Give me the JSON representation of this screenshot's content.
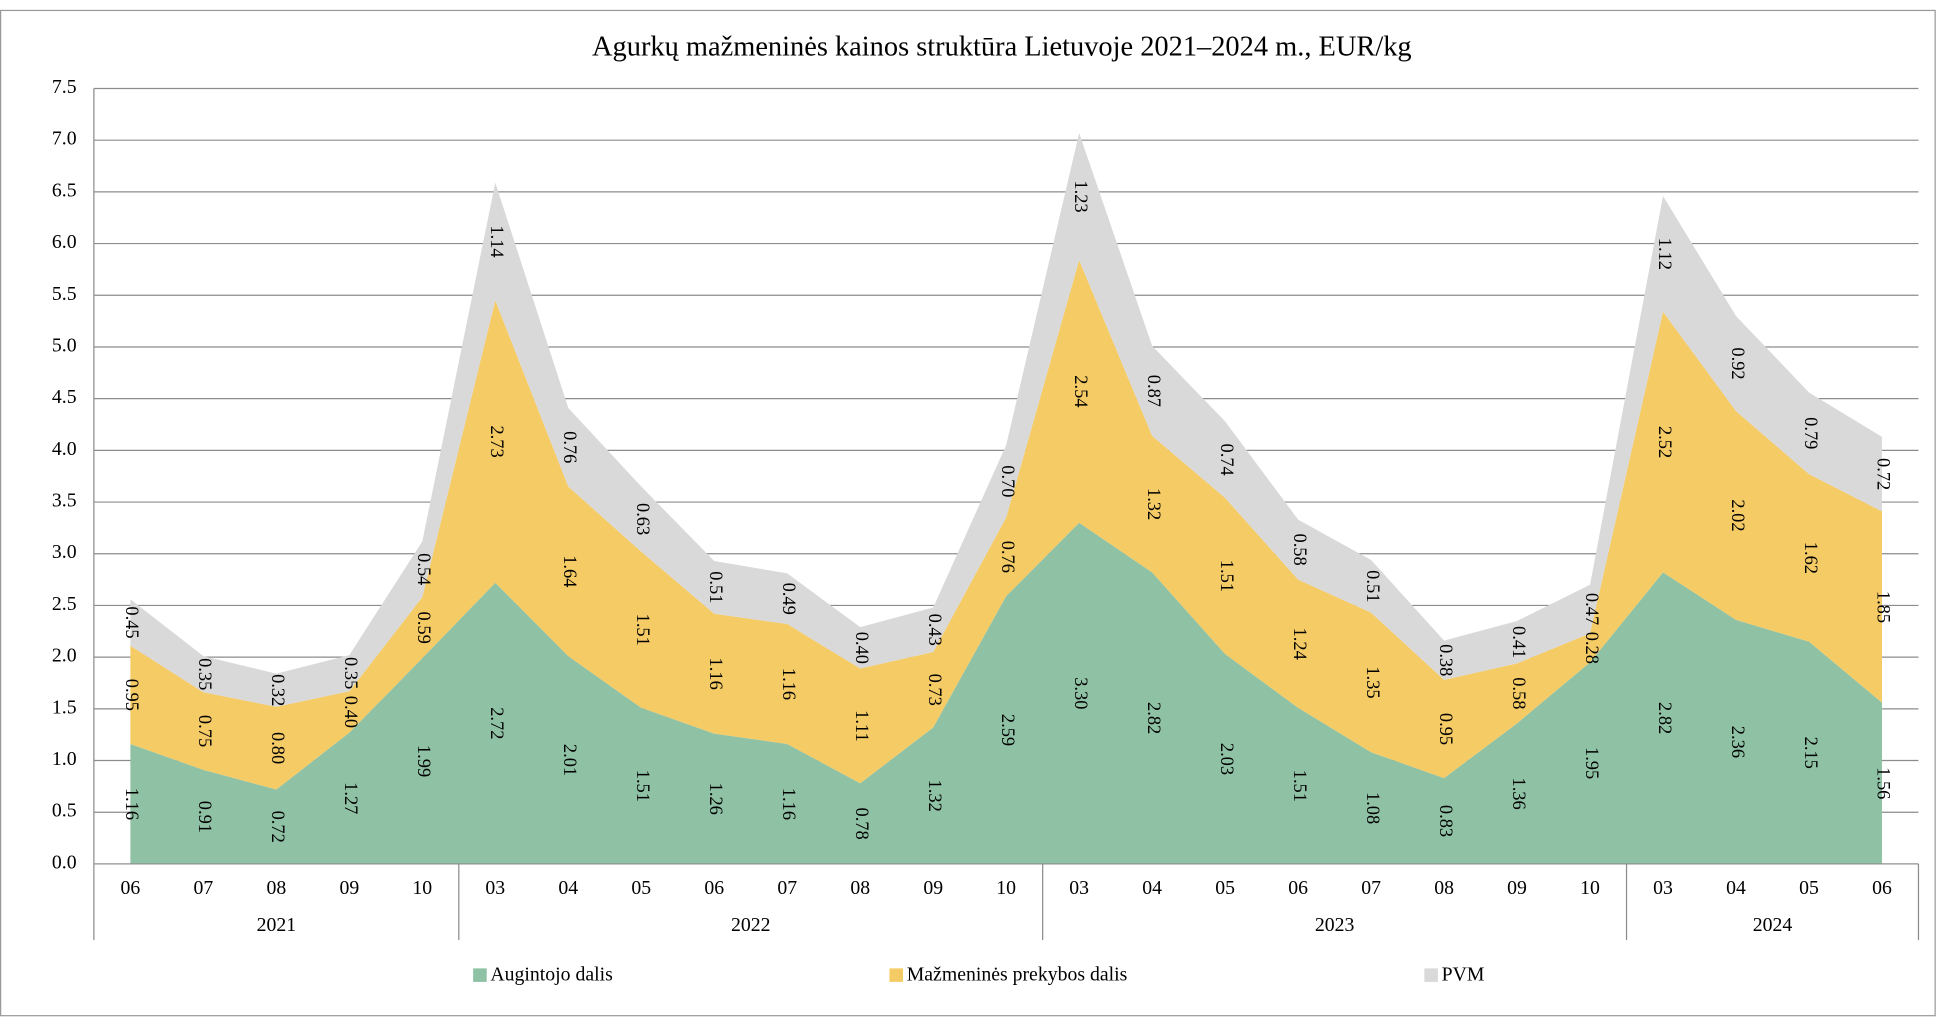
{
  "chart_data": {
    "type": "stacked_area",
    "title": "Agurkų mažmeninės kainos struktūra Lietuvoje 2021–2024 m., EUR/kg",
    "groups": [
      {
        "label": "2021",
        "categories": [
          "06",
          "07",
          "08",
          "09",
          "10"
        ]
      },
      {
        "label": "2022",
        "categories": [
          "03",
          "04",
          "05",
          "06",
          "07",
          "08",
          "09",
          "10"
        ]
      },
      {
        "label": "2023",
        "categories": [
          "03",
          "04",
          "05",
          "06",
          "07",
          "08",
          "09",
          "10"
        ]
      },
      {
        "label": "2024",
        "categories": [
          "03",
          "04",
          "05",
          "06"
        ]
      }
    ],
    "series": [
      {
        "name": "Augintojo dalis",
        "color": "#8fc2a5",
        "values": [
          1.16,
          0.91,
          0.72,
          1.27,
          1.99,
          2.72,
          2.01,
          1.51,
          1.26,
          1.16,
          0.78,
          1.32,
          2.59,
          3.3,
          2.82,
          2.03,
          1.51,
          1.08,
          0.83,
          1.36,
          1.95,
          2.82,
          2.36,
          2.15,
          1.56
        ],
        "value_labels": [
          "1.16",
          "0.91",
          "0.72",
          "1.27",
          "1.99",
          "2.72",
          "2.01",
          "1.51",
          "1.26",
          "1.16",
          "0.78",
          "1.32",
          "2.59",
          "3.30",
          "2.82",
          "2.03",
          "1.51",
          "1.08",
          "0.83",
          "1.36",
          "1.95",
          "2.82",
          "2.36",
          "2.15",
          "1.56"
        ]
      },
      {
        "name": "Mažmeninės prekybos dalis",
        "color": "#f5cb66",
        "values": [
          0.95,
          0.75,
          0.8,
          0.4,
          0.59,
          2.73,
          1.64,
          1.51,
          1.16,
          1.16,
          1.11,
          0.73,
          0.76,
          2.54,
          1.32,
          1.51,
          1.24,
          1.35,
          0.95,
          0.58,
          0.28,
          2.52,
          2.02,
          1.62,
          1.85
        ],
        "value_labels": [
          "0.95",
          "0.75",
          "0.80",
          "0.40",
          "0.59",
          "2.73",
          "1.64",
          "1.51",
          "1.16",
          "1.16",
          "1.11",
          "0.73",
          "0.76",
          "2.54",
          "1.32",
          "1.51",
          "1.24",
          "1.35",
          "0.95",
          "0.58",
          "0.28",
          "2.52",
          "2.02",
          "1.62",
          "1.85"
        ]
      },
      {
        "name": "PVM",
        "color": "#d9d9d9",
        "values": [
          0.45,
          0.35,
          0.32,
          0.35,
          0.54,
          1.14,
          0.76,
          0.63,
          0.51,
          0.49,
          0.4,
          0.43,
          0.7,
          1.23,
          0.87,
          0.74,
          0.58,
          0.51,
          0.38,
          0.41,
          0.47,
          1.12,
          0.92,
          0.79,
          0.72
        ],
        "value_labels": [
          "0.45",
          "0.35",
          "0.32",
          "0.35",
          "0.54",
          "1.14",
          "0.76",
          "0.63",
          "0.51",
          "0.49",
          "0.40",
          "0.43",
          "0.70",
          "1.23",
          "0.87",
          "0.74",
          "0.58",
          "0.51",
          "0.38",
          "0.41",
          "0.47",
          "1.12",
          "0.92",
          "0.79",
          "0.72"
        ]
      }
    ],
    "ylim": [
      0,
      7.5
    ],
    "yticks": [
      {
        "value": 0,
        "label": "0.0"
      },
      0.5,
      {
        "value": 1,
        "label": "1.0"
      },
      1.5,
      {
        "value": 2,
        "label": "2.0"
      },
      2.5,
      {
        "value": 3,
        "label": "3.0"
      },
      3.5,
      {
        "value": 4,
        "label": "4.0"
      },
      4.5,
      {
        "value": 5,
        "label": "5.0"
      },
      5.5,
      {
        "value": 6,
        "label": "6.0"
      },
      6.5,
      {
        "value": 7,
        "label": "7.0"
      },
      7.5
    ],
    "grid": true,
    "legend": "bottom"
  }
}
